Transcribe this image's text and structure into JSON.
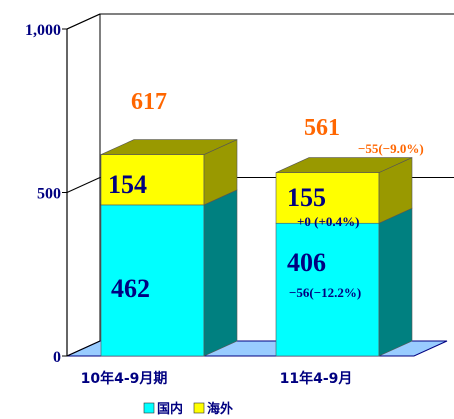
{
  "chart_data": {
    "type": "bar",
    "stacked": true,
    "categories": [
      "10年4-9月期",
      "11年4-9月"
    ],
    "series": [
      {
        "name": "国内",
        "values": [
          462,
          406
        ],
        "changes": [
          "",
          "−56(−12.2%)"
        ],
        "color": "#00ffff",
        "side_color": "#008080",
        "top_color": "#00e0e0"
      },
      {
        "name": "海外",
        "values": [
          154,
          155
        ],
        "changes": [
          "",
          "+0 (+0.4%)"
        ],
        "color": "#ffff00",
        "side_color": "#999900",
        "top_color": "#999900"
      }
    ],
    "totals": [
      617,
      561
    ],
    "total_changes": [
      "",
      "−55(−9.0%)"
    ],
    "yticks": [
      "0",
      "500",
      "1,000"
    ],
    "ytick_values": [
      0,
      500,
      1000
    ],
    "ylim": [
      0,
      1000
    ],
    "grid": true,
    "legend_position": "bottom",
    "colors": {
      "text": "#000080",
      "total": "#ff6600",
      "floor": "#99ccff"
    }
  }
}
